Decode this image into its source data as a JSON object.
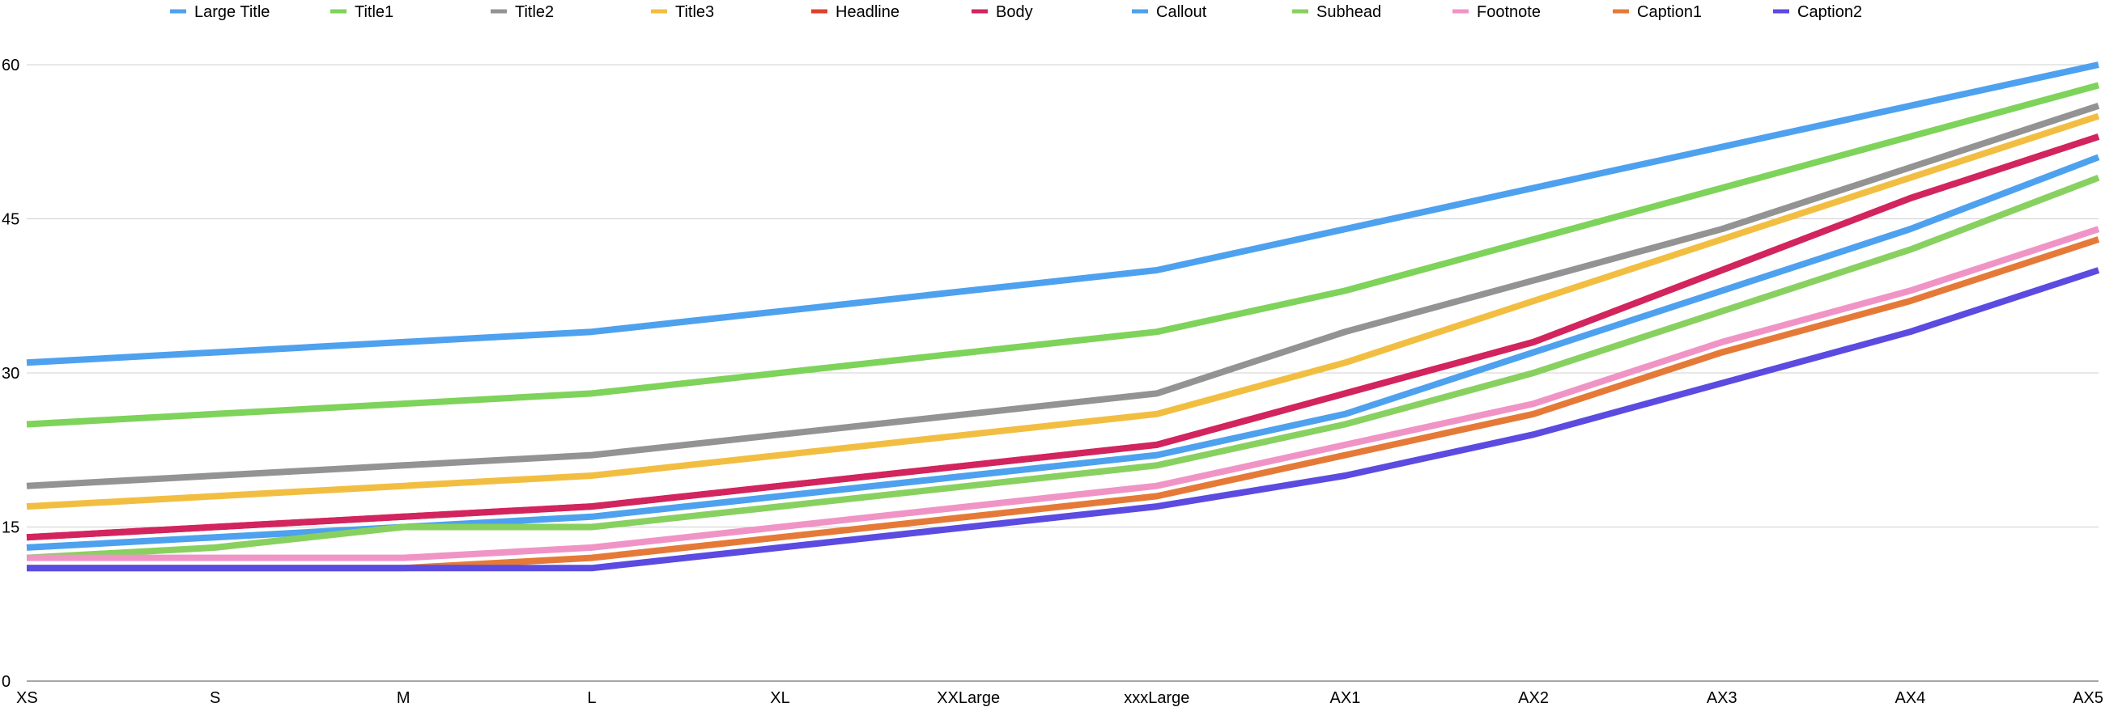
{
  "chart_data": {
    "type": "line",
    "title": "",
    "xlabel": "",
    "ylabel": "",
    "ylim": [
      0,
      60
    ],
    "yticks": [
      0,
      15,
      30,
      45,
      60
    ],
    "grid": true,
    "legend_position": "top",
    "categories": [
      "XS",
      "S",
      "M",
      "L",
      "XL",
      "XXLarge",
      "xxxLarge",
      "AX1",
      "AX2",
      "AX3",
      "AX4",
      "AX5"
    ],
    "series": [
      {
        "name": "Large Title",
        "color": "#4EA1EE",
        "values": [
          31,
          32,
          33,
          34,
          36,
          38,
          40,
          44,
          48,
          52,
          56,
          60
        ]
      },
      {
        "name": "Title1",
        "color": "#7ED35A",
        "values": [
          25,
          26,
          27,
          28,
          30,
          32,
          34,
          38,
          43,
          48,
          53,
          58
        ]
      },
      {
        "name": "Title2",
        "color": "#939393",
        "values": [
          19,
          20,
          21,
          22,
          24,
          26,
          28,
          34,
          39,
          44,
          50,
          56
        ]
      },
      {
        "name": "Title3",
        "color": "#F2BE42",
        "values": [
          17,
          18,
          19,
          20,
          22,
          24,
          26,
          31,
          37,
          43,
          49,
          55
        ]
      },
      {
        "name": "Headline",
        "color": "#E0402F",
        "values": [
          14,
          15,
          16,
          17,
          19,
          21,
          23,
          28,
          33,
          40,
          47,
          53
        ]
      },
      {
        "name": "Body",
        "color": "#D2245E",
        "values": [
          14,
          15,
          16,
          17,
          19,
          21,
          23,
          28,
          33,
          40,
          47,
          53
        ]
      },
      {
        "name": "Callout",
        "color": "#4EA1EE",
        "values": [
          13,
          14,
          15,
          16,
          18,
          20,
          22,
          26,
          32,
          38,
          44,
          51
        ]
      },
      {
        "name": "Subhead",
        "color": "#88D160",
        "values": [
          12,
          13,
          15,
          15,
          17,
          19,
          21,
          25,
          30,
          36,
          42,
          49
        ]
      },
      {
        "name": "Footnote",
        "color": "#F094C6",
        "values": [
          12,
          12,
          12,
          13,
          15,
          17,
          19,
          23,
          27,
          33,
          38,
          44
        ]
      },
      {
        "name": "Caption1",
        "color": "#E57A38",
        "values": [
          11,
          11,
          11,
          12,
          14,
          16,
          18,
          22,
          26,
          32,
          37,
          43
        ]
      },
      {
        "name": "Caption2",
        "color": "#5B4BE0",
        "values": [
          11,
          11,
          11,
          11,
          13,
          15,
          17,
          20,
          24,
          29,
          34,
          40
        ]
      }
    ]
  }
}
